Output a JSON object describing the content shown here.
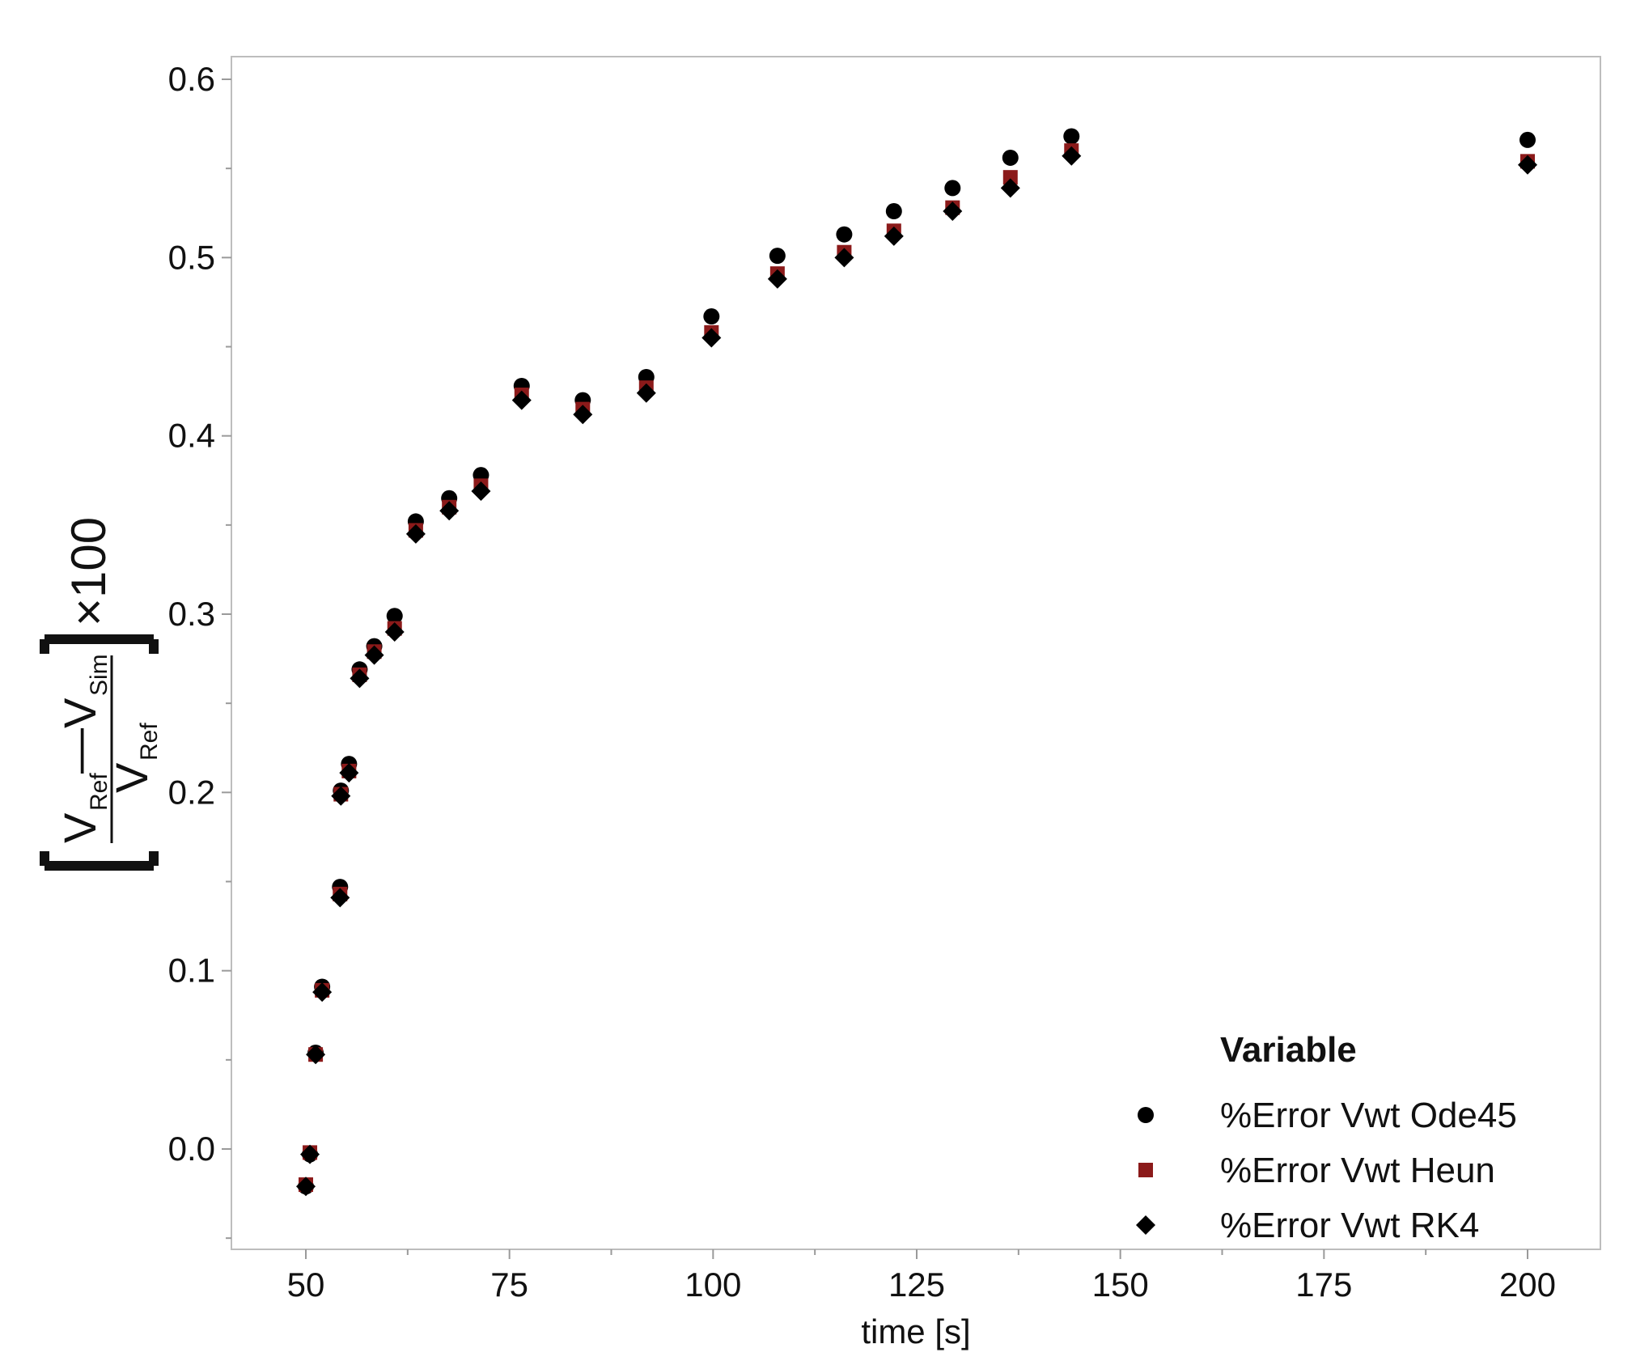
{
  "chart_data": {
    "type": "scatter",
    "title": "",
    "xlabel": "time [s]",
    "ylabel": {
      "numerator_main": "V",
      "numerator_sub1": "Ref",
      "minus": "—",
      "numerator_main2": "V",
      "numerator_sub2": "Sim",
      "denominator_main": "V",
      "denominator_sub": "Ref",
      "multiplier": "×100"
    },
    "xlim": [
      42,
      210
    ],
    "ylim": [
      -0.055,
      0.61
    ],
    "xticks": [
      50,
      75,
      100,
      125,
      150,
      175,
      200
    ],
    "yticks": [
      0.0,
      0.1,
      0.2,
      0.3,
      0.4,
      0.5,
      0.6
    ],
    "ytick_labels": [
      "0.0",
      "0.1",
      "0.2",
      "0.3",
      "0.4",
      "0.5",
      "0.6"
    ],
    "grid": false,
    "legend": {
      "title": "Variable",
      "position": "bottom-right"
    },
    "x": [
      50.0,
      50.5,
      51.2,
      52.0,
      54.2,
      54.3,
      55.3,
      56.6,
      58.4,
      60.9,
      63.5,
      67.6,
      71.5,
      76.5,
      84.0,
      91.8,
      99.8,
      107.9,
      116.1,
      122.2,
      129.4,
      136.5,
      144.0,
      200.0
    ],
    "series": [
      {
        "name": "%Error Vwt Ode45",
        "marker": "circle",
        "color": "#000000",
        "values": [
          -0.021,
          -0.003,
          0.054,
          0.091,
          0.147,
          0.201,
          0.216,
          0.269,
          0.282,
          0.299,
          0.352,
          0.365,
          0.378,
          0.428,
          0.42,
          0.433,
          0.467,
          0.501,
          0.513,
          0.526,
          0.539,
          0.556,
          0.568,
          0.566
        ]
      },
      {
        "name": "%Error Vwt Heun",
        "marker": "square",
        "color": "#8b1a1a",
        "values": [
          -0.02,
          -0.002,
          0.053,
          0.089,
          0.143,
          0.199,
          0.212,
          0.266,
          0.279,
          0.292,
          0.347,
          0.36,
          0.372,
          0.423,
          0.415,
          0.427,
          0.458,
          0.491,
          0.503,
          0.515,
          0.528,
          0.545,
          0.56,
          0.554
        ]
      },
      {
        "name": "%Error Vwt RK4",
        "marker": "diamond",
        "color": "#000000",
        "values": [
          -0.021,
          -0.003,
          0.053,
          0.088,
          0.141,
          0.198,
          0.211,
          0.264,
          0.277,
          0.29,
          0.345,
          0.358,
          0.369,
          0.42,
          0.412,
          0.424,
          0.455,
          0.488,
          0.5,
          0.512,
          0.526,
          0.539,
          0.557,
          0.552
        ]
      }
    ]
  }
}
